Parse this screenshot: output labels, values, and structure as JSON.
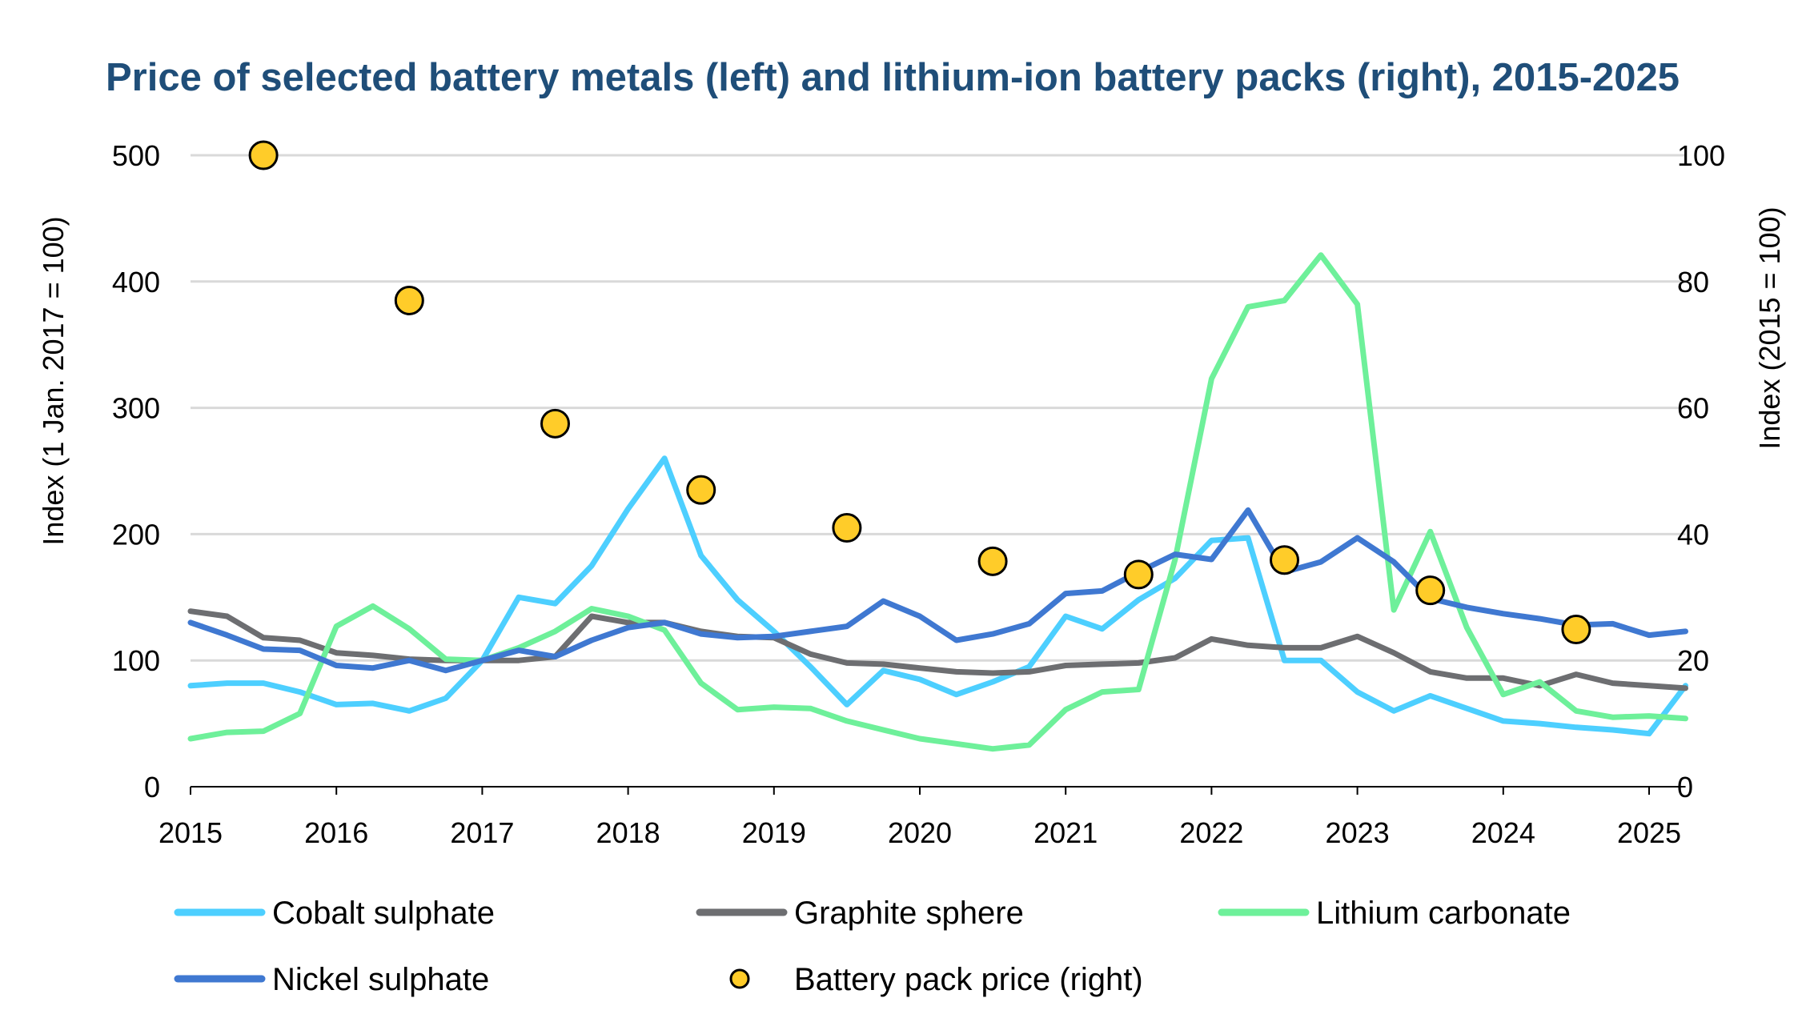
{
  "chart_data": {
    "type": "line",
    "title": "Price of selected battery metals (left) and lithium-ion battery packs (right), 2015-2025",
    "x_tick_labels": [
      "2015",
      "2016",
      "2017",
      "2018",
      "2019",
      "2020",
      "2021",
      "2022",
      "2023",
      "2024",
      "2025"
    ],
    "x_range": [
      2015,
      2025.25
    ],
    "y_left": {
      "label": "Index (1 Jan. 2017 = 100)",
      "range": [
        0,
        500
      ],
      "ticks": [
        0,
        100,
        200,
        300,
        400,
        500
      ]
    },
    "y_right": {
      "label": "Index (2015 = 100)",
      "range": [
        0,
        100
      ],
      "ticks": [
        0,
        20,
        40,
        60,
        80,
        100
      ]
    },
    "grid": "horizontal",
    "legend_position": "bottom",
    "x": [
      2015.0,
      2015.25,
      2015.5,
      2015.75,
      2016.0,
      2016.25,
      2016.5,
      2016.75,
      2017.0,
      2017.25,
      2017.5,
      2017.75,
      2018.0,
      2018.25,
      2018.5,
      2018.75,
      2019.0,
      2019.25,
      2019.5,
      2019.75,
      2020.0,
      2020.25,
      2020.5,
      2020.75,
      2021.0,
      2021.25,
      2021.5,
      2021.75,
      2022.0,
      2022.25,
      2022.5,
      2022.75,
      2023.0,
      2023.25,
      2023.5,
      2023.75,
      2024.0,
      2024.25,
      2024.5,
      2024.75,
      2025.0,
      2025.25
    ],
    "series": [
      {
        "name": "Cobalt sulphate",
        "color": "#4dcfff",
        "axis": "left",
        "style": "line",
        "values": [
          80,
          82,
          82,
          75,
          65,
          66,
          60,
          70,
          100,
          150,
          145,
          175,
          220,
          260,
          183,
          148,
          123,
          95,
          65,
          92,
          85,
          73,
          83,
          95,
          135,
          125,
          148,
          165,
          195,
          197,
          100,
          100,
          75,
          60,
          72,
          62,
          52,
          50,
          47,
          45,
          42,
          80
        ]
      },
      {
        "name": "Graphite sphere",
        "color": "#6d6e71",
        "axis": "left",
        "style": "line",
        "values": [
          139,
          135,
          118,
          116,
          106,
          104,
          101,
          100,
          100,
          100,
          103,
          135,
          130,
          130,
          123,
          119,
          118,
          105,
          98,
          97,
          94,
          91,
          90,
          91,
          96,
          97,
          98,
          102,
          117,
          112,
          110,
          110,
          119,
          106,
          91,
          86,
          86,
          80,
          89,
          82,
          80,
          78
        ]
      },
      {
        "name": "Lithium carbonate",
        "color": "#6ef09a",
        "axis": "left",
        "style": "line",
        "values": [
          38,
          43,
          44,
          58,
          127,
          143,
          125,
          101,
          100,
          110,
          123,
          141,
          135,
          124,
          82,
          61,
          63,
          62,
          52,
          45,
          38,
          34,
          30,
          33,
          61,
          75,
          77,
          180,
          323,
          380,
          385,
          421,
          382,
          140,
          202,
          126,
          73,
          83,
          60,
          55,
          56,
          54
        ]
      },
      {
        "name": "Nickel sulphate",
        "color": "#3f78d1",
        "axis": "left",
        "style": "line",
        "values": [
          130,
          120,
          109,
          108,
          96,
          94,
          100,
          92,
          100,
          108,
          103,
          116,
          126,
          130,
          121,
          118,
          119,
          123,
          127,
          147,
          135,
          116,
          121,
          129,
          153,
          155,
          170,
          184,
          180,
          219,
          170,
          178,
          197,
          178,
          149,
          142,
          137,
          133,
          128,
          129,
          120,
          123
        ]
      },
      {
        "name": "Battery pack price (right)",
        "color": "#ffcc29",
        "axis": "right",
        "style": "markers",
        "x": [
          2015.5,
          2016.5,
          2017.5,
          2018.5,
          2019.5,
          2020.5,
          2021.5,
          2022.5,
          2023.5,
          2024.5
        ],
        "values": [
          100,
          77,
          57.5,
          47,
          41,
          35.7,
          33.6,
          35.9,
          31.1,
          24.9
        ]
      }
    ]
  }
}
